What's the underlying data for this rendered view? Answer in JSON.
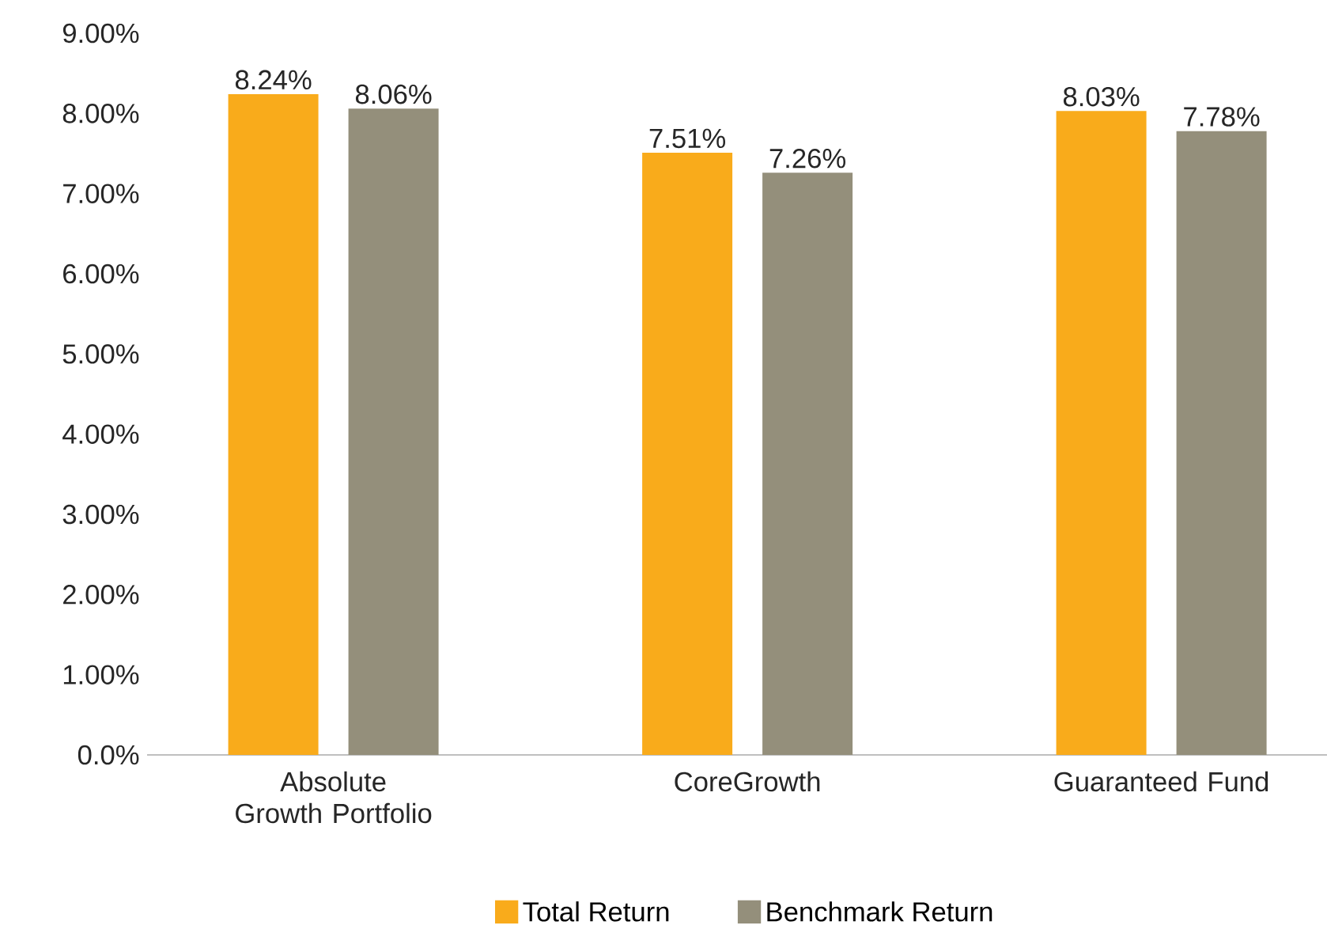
{
  "chart_data": {
    "type": "bar",
    "categories": [
      "Absolute Growth Portfolio",
      "CoreGrowth",
      "Guaranteed Fund"
    ],
    "series": [
      {
        "name": "Total Return",
        "color": "#f9ab1b",
        "values": [
          8.24,
          7.51,
          8.03
        ],
        "value_labels": [
          "8.24%",
          "7.51%",
          "8.03%"
        ]
      },
      {
        "name": "Benchmark Return",
        "color": "#948f7b",
        "values": [
          8.06,
          7.26,
          7.78
        ],
        "value_labels": [
          "8.06%",
          "7.26%",
          "7.78%"
        ]
      }
    ],
    "ylim": [
      0,
      9
    ],
    "yticks": [
      {
        "value": 0,
        "label": "0.0%"
      },
      {
        "value": 1,
        "label": "1.00%"
      },
      {
        "value": 2,
        "label": "2.00%"
      },
      {
        "value": 3,
        "label": "3.00%"
      },
      {
        "value": 4,
        "label": "4.00%"
      },
      {
        "value": 5,
        "label": "5.00%"
      },
      {
        "value": 6,
        "label": "6.00%"
      },
      {
        "value": 7,
        "label": "7.00%"
      },
      {
        "value": 8,
        "label": "8.00%"
      },
      {
        "value": 9,
        "label": "9.00%"
      }
    ],
    "grid": false,
    "legend": "bottom"
  }
}
